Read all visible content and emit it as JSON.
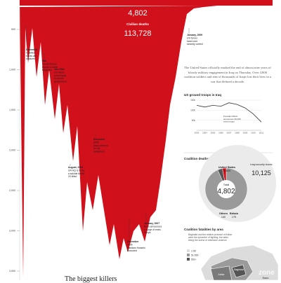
{
  "colors": {
    "red": "#d0101b",
    "grey": "#9a9a9a",
    "darkgrey": "#555555",
    "lightgrey": "#dcdcdc",
    "text": "#222222"
  },
  "chart_data": [
    {
      "type": "area",
      "title": "",
      "y_ticks": [
        "500",
        "1,000",
        "1,500",
        "2,000",
        "2,500",
        "3,000",
        "3,500"
      ],
      "ylim": [
        0,
        3600
      ],
      "series": [
        {
          "name": "Coalition deaths",
          "total": "4,802"
        },
        {
          "name": "Civilian deaths",
          "total": "113,728"
        }
      ],
      "annotations": [
        {
          "id": "a1",
          "lines": [
            "December",
            "Coalition",
            "forces are",
            "captured"
          ]
        },
        {
          "id": "a2",
          "lines": [
            "Mar",
            "US-led forces",
            "invade & seize",
            "Baghdad"
          ]
        },
        {
          "id": "a3",
          "lines": [
            "Jun 2004",
            "US hands",
            "sovereignty",
            "to interim",
            "government"
          ]
        },
        {
          "id": "a4",
          "lines": [
            "December",
            "2005",
            "Iraq's election",
            "for full",
            "parliament"
          ]
        },
        {
          "id": "a5",
          "lines": [
            "August, 2003",
            "UN HQ is hit by",
            "a suicide bomb;",
            "20 killed"
          ]
        },
        {
          "id": "a6",
          "lines": [
            "January, 2007",
            "Bush announces",
            "a surge of extra",
            "troops"
          ]
        },
        {
          "id": "a7",
          "lines": [
            "December",
            "2006",
            "Saddam Hussein",
            "executed"
          ]
        },
        {
          "id": "a8",
          "lines": [
            "January, 2009",
            "US forces",
            "hand over",
            "security control"
          ]
        }
      ]
    },
    {
      "type": "line",
      "title": "US ground troops in Iraq",
      "x": [
        "2003",
        "2004",
        "2005",
        "2006",
        "2007",
        "2008",
        "2009",
        "2010",
        "2011"
      ],
      "y_ticks": [
        "150k",
        "100k",
        "50k"
      ],
      "ylim": [
        0,
        175000
      ],
      "series": [
        {
          "values": [
            145000,
            135000,
            145000,
            140000,
            160000,
            150000,
            130000,
            95000,
            48000
          ]
        }
      ],
      "annotations": [
        "President Bush",
        "announces 30,000",
        "extra troops"
      ]
    },
    {
      "type": "pie",
      "title": "Coalition deaths",
      "center_label": "Total",
      "center_value": "4,802",
      "slices": [
        {
          "label": "United States",
          "value": 4483
        },
        {
          "label": "Britain",
          "value": 179
        },
        {
          "label": "Others",
          "value": 140
        }
      ],
      "labels": {
        "us_value": "4,483",
        "britain_value": "179",
        "others_value": "140"
      },
      "side_label": "Iraqi security forces",
      "side_value": "10,125"
    }
  ],
  "texts": {
    "intro": "The United States officially marked the end of almost nine years of bloody military engagement in Iraq on Thursday. Over 4,800 coalition soldiers and tens of thousands of Iraqis lost their lives in a war that defined a decade.",
    "headline": "The biggest killers",
    "map_title": "Coalition fatalities by area",
    "map_note": "Baghdad and the restive province of Anbar were the epicentre of fighting, the latter being the scene of extensive violence",
    "map_legend": [
      "1-50",
      "51-500",
      "501+"
    ],
    "map_places": [
      "Baghdad",
      "Anbar",
      "Basra"
    ],
    "watermark": "zone"
  }
}
